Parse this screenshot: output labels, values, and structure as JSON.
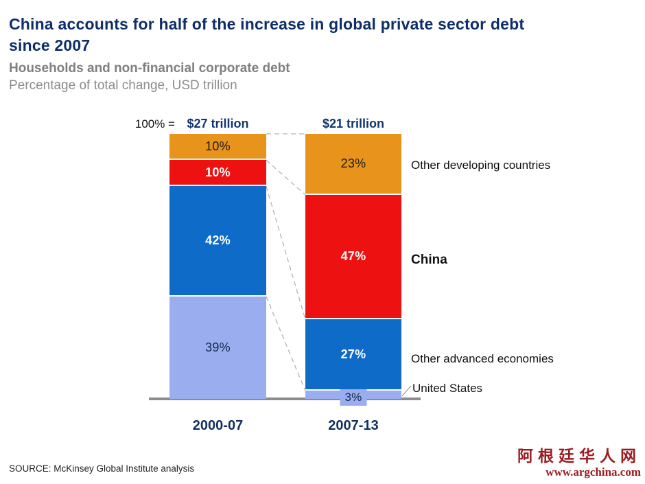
{
  "header": {
    "title_line1": "China accounts for half of the increase in global private sector debt",
    "title_line2": "since 2007",
    "subtitle_bold": "Households and non-financial corporate debt",
    "subtitle": "Percentage of total change, USD trillion"
  },
  "chart_data": {
    "type": "bar",
    "variant": "stacked-100-percent-column",
    "base_label": "100% =",
    "categories": [
      "2000-07",
      "2007-13"
    ],
    "totals": [
      "$27 trillion",
      "$21 trillion"
    ],
    "value_suffix": "%",
    "series": [
      {
        "name": "Other developing countries",
        "color": "#E8941C",
        "values": [
          10,
          23
        ],
        "label_color": "#1A1A1A",
        "label_bold": false
      },
      {
        "name": "China",
        "color": "#EE1111",
        "values": [
          10,
          47
        ],
        "label_color": "#FFFFFF",
        "label_bold": true
      },
      {
        "name": "Other advanced economies",
        "color": "#0E6BC8",
        "values": [
          42,
          27
        ],
        "label_color": "#FFFFFF",
        "label_bold": true
      },
      {
        "name": "United States",
        "color": "#9AAEEF",
        "values": [
          39,
          3
        ],
        "label_color": "#14284C",
        "label_bold": false
      }
    ],
    "legend_position": "right",
    "grid": false,
    "ylim": [
      0,
      100
    ],
    "connector_style": "dashed gray lines linking segment boundaries between the two columns"
  },
  "footer": {
    "source": "SOURCE: McKinsey Global Institute analysis"
  },
  "watermark": {
    "line1": "阿根廷华人网",
    "line2": "www.argchina.com"
  },
  "palette": {
    "title_navy": "#0D2E68",
    "subtitle_gray": "#7F7F7F",
    "axis_gray": "#8C8C8C",
    "connector_gray": "#B3B3B3",
    "callout_gray": "#999999",
    "watermark_red": "#9B1B1F"
  }
}
